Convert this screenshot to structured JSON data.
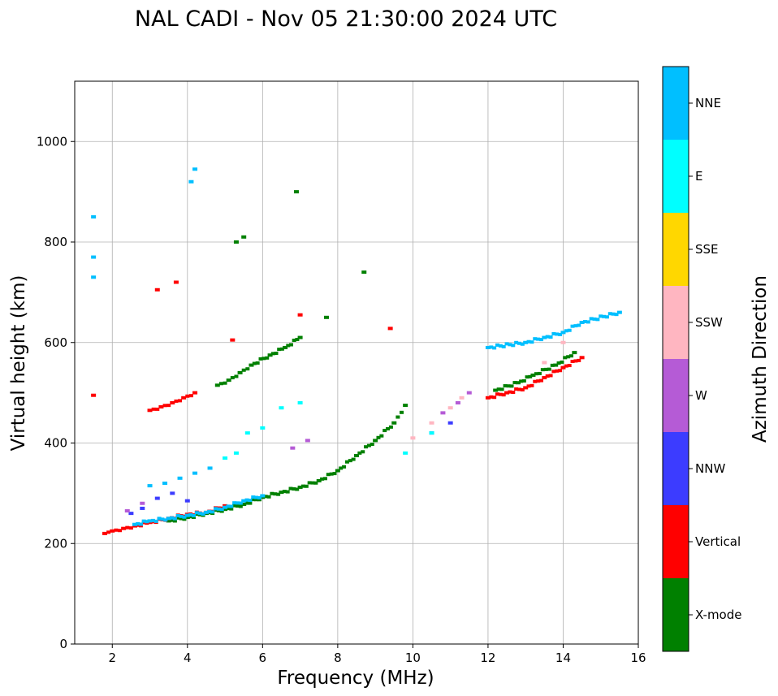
{
  "chart_data": {
    "type": "scatter",
    "title": "NAL CADI - Nov 05 21:30:00 2024 UTC",
    "xlabel": "Frequency (MHz)",
    "ylabel": "Virtual height (km)",
    "xlim": [
      1,
      16
    ],
    "ylim": [
      0,
      1120
    ],
    "xticks": [
      2,
      4,
      6,
      8,
      10,
      12,
      14,
      16
    ],
    "yticks": [
      0,
      200,
      400,
      600,
      800,
      1000
    ],
    "grid": true,
    "colorbar": {
      "label": "Azimuth Direction",
      "categories": [
        {
          "name": "X-mode",
          "color": "#008000"
        },
        {
          "name": "Vertical",
          "color": "#ff0000"
        },
        {
          "name": "NNW",
          "color": "#3c3cff"
        },
        {
          "name": "W",
          "color": "#b55bd6"
        },
        {
          "name": "SSW",
          "color": "#ffb6c1"
        },
        {
          "name": "SSE",
          "color": "#ffd700"
        },
        {
          "name": "E",
          "color": "#00ffff"
        },
        {
          "name": "NNE",
          "color": "#00bfff"
        }
      ]
    },
    "traces": [
      {
        "name": "X-mode main trace",
        "category": "X-mode",
        "x": [
          3.5,
          4,
          4.5,
          5,
          5.5,
          6,
          6.5,
          7,
          7.5,
          8,
          8.5,
          9,
          9.5,
          9.8
        ],
        "y": [
          245,
          252,
          260,
          268,
          278,
          292,
          302,
          312,
          325,
          345,
          375,
          405,
          440,
          475
        ]
      },
      {
        "name": "Vertical main trace",
        "category": "Vertical",
        "x": [
          1.8,
          2.0,
          2.3,
          2.6,
          3.0,
          3.5,
          4.0,
          4.5,
          5.0
        ],
        "y": [
          220,
          225,
          230,
          235,
          242,
          250,
          258,
          262,
          275
        ]
      },
      {
        "name": "NNE low trace",
        "category": "NNE",
        "x": [
          2.6,
          3.0,
          3.5,
          4.0,
          4.5,
          5.0,
          5.5,
          6.0
        ],
        "y": [
          238,
          245,
          250,
          256,
          262,
          272,
          285,
          295
        ]
      },
      {
        "name": "NNE upper oblique",
        "category": "NNE",
        "x": [
          3.0,
          3.4,
          3.8,
          4.2,
          4.6
        ],
        "y": [
          315,
          320,
          330,
          340,
          350
        ]
      },
      {
        "name": "Vertical second hop",
        "category": "Vertical",
        "x": [
          3.0,
          3.3,
          3.6,
          3.9,
          4.2
        ],
        "y": [
          465,
          472,
          480,
          490,
          500
        ]
      },
      {
        "name": "X-mode second hop",
        "category": "X-mode",
        "x": [
          4.8,
          5.1,
          5.4,
          5.7,
          6.2,
          6.6,
          7.0
        ],
        "y": [
          515,
          525,
          540,
          555,
          575,
          590,
          610
        ]
      },
      {
        "name": "NNW scatter",
        "category": "NNW",
        "x": [
          2.5,
          2.8,
          3.2,
          3.6,
          4.0,
          10.5,
          11.0
        ],
        "y": [
          260,
          270,
          290,
          300,
          285,
          420,
          440
        ]
      },
      {
        "name": "W scatter",
        "category": "W",
        "x": [
          2.4,
          2.8,
          6.8,
          7.2,
          10.8,
          11.2,
          11.5
        ],
        "y": [
          265,
          280,
          390,
          405,
          460,
          480,
          500
        ]
      },
      {
        "name": "SSW scatter",
        "category": "SSW",
        "x": [
          10.0,
          10.5,
          11.0,
          11.3,
          13.5,
          14.0
        ],
        "y": [
          410,
          440,
          470,
          490,
          560,
          600
        ]
      },
      {
        "name": "Upper band Vertical",
        "category": "Vertical",
        "x": [
          12.0,
          12.5,
          13.0,
          13.5,
          14.0,
          14.5
        ],
        "y": [
          490,
          500,
          510,
          530,
          550,
          570
        ]
      },
      {
        "name": "Upper band X-mode",
        "category": "X-mode",
        "x": [
          12.2,
          12.8,
          13.2,
          13.8,
          14.3
        ],
        "y": [
          505,
          520,
          535,
          555,
          580
        ]
      },
      {
        "name": "Upper band NNE",
        "category": "NNE",
        "x": [
          12.0,
          13.0,
          13.5,
          14.0,
          14.5,
          15.5
        ],
        "y": [
          590,
          600,
          610,
          620,
          640,
          660
        ]
      },
      {
        "name": "Mid E scatter",
        "category": "E",
        "x": [
          5.0,
          5.3,
          5.6,
          6.0,
          6.5,
          7.0,
          9.8,
          10.5
        ],
        "y": [
          370,
          380,
          420,
          430,
          470,
          480,
          380,
          420
        ]
      },
      {
        "name": "High isolated",
        "category": "NNE",
        "x": [
          1.5,
          1.5,
          1.5,
          4.1,
          4.2
        ],
        "y": [
          730,
          770,
          850,
          920,
          945
        ]
      },
      {
        "name": "High isolated X-mode",
        "category": "X-mode",
        "x": [
          5.3,
          5.5,
          6.9,
          8.7,
          7.7
        ],
        "y": [
          800,
          810,
          900,
          740,
          650
        ]
      },
      {
        "name": "High isolated Vertical",
        "category": "Vertical",
        "x": [
          3.2,
          3.7,
          1.5,
          7.0,
          9.4,
          5.2
        ],
        "y": [
          705,
          720,
          495,
          655,
          628,
          605
        ]
      }
    ]
  }
}
